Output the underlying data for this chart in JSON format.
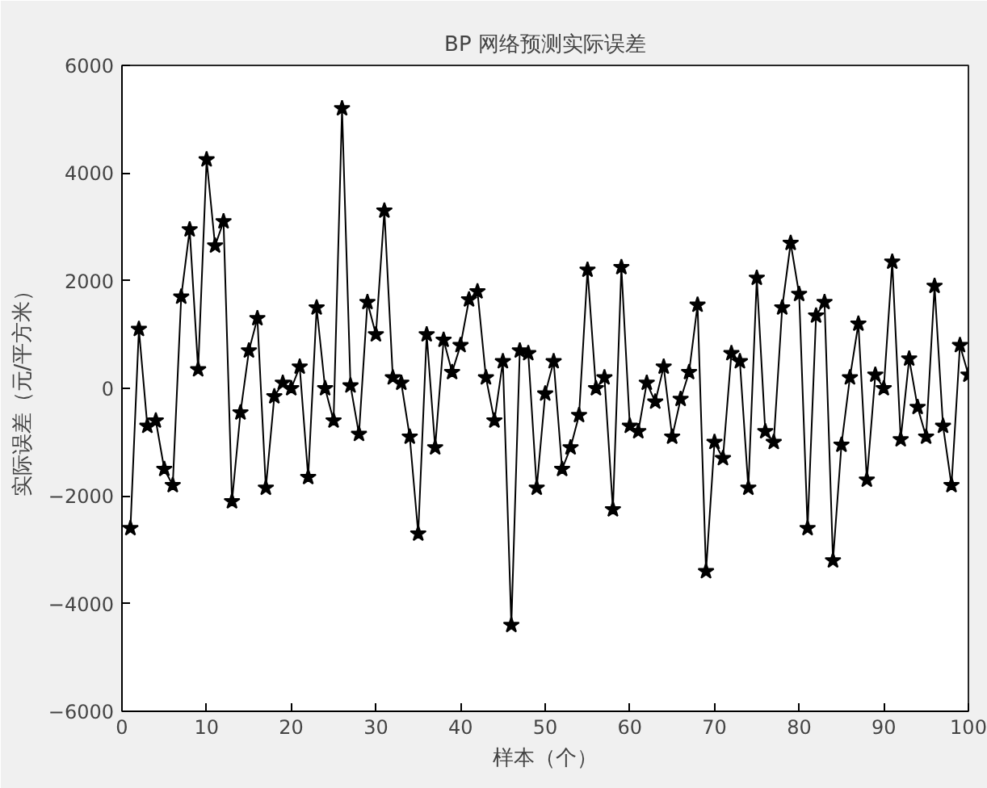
{
  "chart_data": {
    "type": "line",
    "title": "BP 网络预测实际误差",
    "xlabel": "样本（个）",
    "ylabel": "实际误差（元/平方米）",
    "x": [
      1,
      2,
      3,
      4,
      5,
      6,
      7,
      8,
      9,
      10,
      11,
      12,
      13,
      14,
      15,
      16,
      17,
      18,
      19,
      20,
      21,
      22,
      23,
      24,
      25,
      26,
      27,
      28,
      29,
      30,
      31,
      32,
      33,
      34,
      35,
      36,
      37,
      38,
      39,
      40,
      41,
      42,
      43,
      44,
      45,
      46,
      47,
      48,
      49,
      50,
      51,
      52,
      53,
      54,
      55,
      56,
      57,
      58,
      59,
      60,
      61,
      62,
      63,
      64,
      65,
      66,
      67,
      68,
      69,
      70,
      71,
      72,
      73,
      74,
      75,
      76,
      77,
      78,
      79,
      80,
      81,
      82,
      83,
      84,
      85,
      86,
      87,
      88,
      89,
      90,
      91,
      92,
      93,
      94,
      95,
      96,
      97,
      98,
      99,
      100
    ],
    "series": [
      {
        "color": "#000000",
        "values": [
          -2600,
          1100,
          -700,
          -600,
          -1500,
          -1800,
          1700,
          2950,
          350,
          4250,
          2650,
          3100,
          -2100,
          -450,
          700,
          1300,
          -1850,
          -150,
          100,
          0,
          400,
          -1650,
          1500,
          0,
          -600,
          5200,
          50,
          -850,
          1600,
          1000,
          3300,
          200,
          100,
          -900,
          -2700,
          1000,
          -1100,
          900,
          300,
          800,
          1650,
          1800,
          200,
          -600,
          500,
          -4400,
          700,
          650,
          -1850,
          -100,
          500,
          -1500,
          -1100,
          -500,
          2200,
          0,
          200,
          -2250,
          2250,
          -700,
          -800,
          100,
          -250,
          400,
          -900,
          -200,
          300,
          1550,
          -3400,
          -1000,
          -1300,
          650,
          500,
          -1850,
          2050,
          -800,
          -1000,
          1500,
          2700,
          1750,
          -2600,
          1350,
          1600,
          -3200,
          -1050,
          200,
          1200,
          -1700,
          250,
          0,
          2350,
          -950,
          550,
          -350,
          -900,
          1900,
          -700,
          -1800,
          800,
          250
        ]
      }
    ],
    "xlim": [
      0,
      100
    ],
    "ylim": [
      -6000,
      6000
    ],
    "xticks": [
      0,
      10,
      20,
      30,
      40,
      50,
      60,
      70,
      80,
      90,
      100
    ],
    "yticks": [
      -6000,
      -4000,
      -2000,
      0,
      2000,
      4000,
      6000
    ],
    "marker": "star",
    "line_style": "solid",
    "grid": false
  }
}
